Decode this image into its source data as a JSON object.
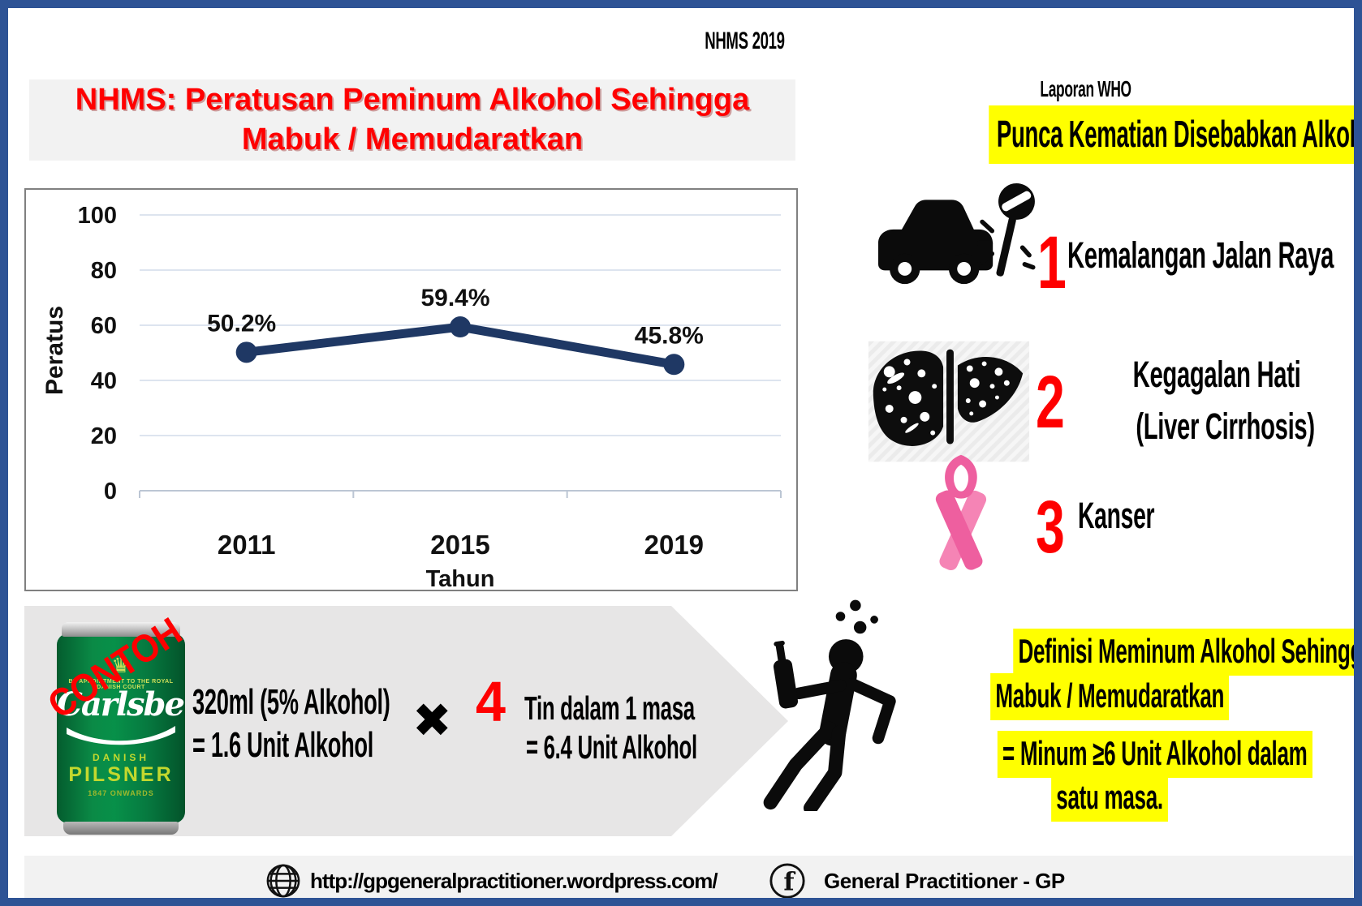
{
  "page": {
    "top_title": "NHMS 2019"
  },
  "left_panel": {
    "title_line1": "NHMS: Peratusan Peminum Alkohol Sehingga",
    "title_line2": "Mabuk / Memudaratkan"
  },
  "chart_data": {
    "type": "line",
    "title": "",
    "categories": [
      "2011",
      "2015",
      "2019"
    ],
    "values": [
      50.2,
      59.4,
      45.8
    ],
    "data_labels": [
      "50.2%",
      "59.4%",
      "45.8%"
    ],
    "xlabel": "Tahun",
    "ylabel": "Peratus",
    "ylim": [
      0,
      100
    ],
    "yticks": [
      0,
      20,
      40,
      60,
      80,
      100
    ],
    "grid": true,
    "legend": false,
    "series_color": "#1f3864"
  },
  "who_panel": {
    "report_label": "Laporan WHO",
    "title": "Punca Kematian Disebabkan Alkohol di Malaysia",
    "causes": [
      {
        "rank": "1",
        "label": "Kemalangan Jalan Raya",
        "icon": "car-crash-icon"
      },
      {
        "rank": "2",
        "label_line1": "Kegagalan Hati",
        "label_line2": "(Liver Cirrhosis)",
        "icon": "liver-icon"
      },
      {
        "rank": "3",
        "label": "Kanser",
        "icon": "pink-ribbon-icon"
      }
    ]
  },
  "example_panel": {
    "stamp": "CONTOH",
    "can": {
      "appointment": "BY APPOINTMENT TO THE ROYAL DANISH COURT",
      "crown_glyph": "♛",
      "brand": "Carlsberg",
      "origin": "DANISH",
      "type": "PILSNER",
      "since": "1847 ONWARDS"
    },
    "calc_line1": "320ml (5% Alkohol)",
    "calc_line2": "= 1.6 Unit Alkohol",
    "multiply_sign": "✖",
    "multiplier": "4",
    "calc_line3": "Tin dalam 1 masa",
    "calc_line4": "= 6.4 Unit Alkohol"
  },
  "definition_panel": {
    "line1": "Definisi Meminum Alkohol Sehingga",
    "line2": "Mabuk / Memudaratkan",
    "line3": "= Minum ≥6 Unit Alkohol dalam",
    "line4": "satu masa."
  },
  "footer": {
    "url": "http://gpgeneralpractitioner.wordpress.com/",
    "facebook_label": "General Practitioner - GP",
    "facebook_glyph": "f"
  },
  "colors": {
    "border_blue": "#2e5395",
    "line_navy": "#1f3864",
    "accent_red": "#fe0000",
    "highlight_yellow": "#ffff00",
    "ribbon_pink": "#ee5f9f",
    "panel_gray": "#e7e6e6",
    "block_gray": "#f2f2f2"
  }
}
